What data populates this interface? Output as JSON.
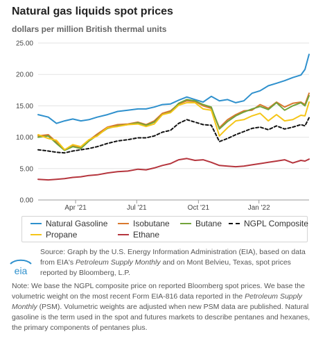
{
  "header": {
    "title": "Natural gas liquids spot prices",
    "subtitle": "dollars per million British thermal units"
  },
  "chart_data": {
    "type": "line",
    "title": "Natural gas liquids spot prices",
    "subtitle": "dollars per million British thermal units",
    "xlabel": "",
    "ylabel": "",
    "ylim": [
      0,
      25
    ],
    "y_ticks": [
      "0.00",
      "5.00",
      "10.00",
      "15.00",
      "20.00",
      "25.00"
    ],
    "x_ticks": [
      "Apr '21",
      "Jul '21",
      "Oct '21",
      "Jan '22"
    ],
    "x_tick_months": [
      2.94,
      5.94,
      8.97,
      11.94
    ],
    "x_range_months": [
      1.1,
      14.4
    ],
    "grid": "horizontal",
    "legend_position": "bottom",
    "series": [
      {
        "name": "Natural Gasoline",
        "color": "#2e90cd",
        "dash": false,
        "x": [
          1.1,
          1.6,
          2.0,
          2.4,
          2.8,
          3.2,
          3.6,
          4.0,
          4.5,
          5.0,
          5.5,
          6.0,
          6.4,
          6.8,
          7.2,
          7.6,
          8.0,
          8.4,
          8.8,
          9.2,
          9.6,
          10.0,
          10.4,
          10.8,
          11.2,
          11.6,
          12.0,
          12.4,
          12.8,
          13.2,
          13.6,
          14.0,
          14.2,
          14.4
        ],
        "values": [
          13.6,
          13.2,
          12.2,
          12.6,
          12.9,
          12.6,
          12.8,
          13.2,
          13.6,
          14.1,
          14.3,
          14.5,
          14.5,
          14.8,
          15.2,
          15.3,
          15.9,
          16.4,
          16.0,
          15.6,
          16.5,
          15.8,
          16.0,
          15.5,
          15.8,
          17.0,
          17.4,
          18.2,
          18.6,
          19.0,
          19.5,
          19.9,
          20.8,
          23.2
        ]
      },
      {
        "name": "Isobutane",
        "color": "#d9782e",
        "dash": false,
        "x": [
          1.1,
          1.6,
          2.0,
          2.4,
          2.8,
          3.2,
          3.6,
          4.0,
          4.5,
          5.0,
          5.5,
          6.0,
          6.4,
          6.8,
          7.2,
          7.6,
          8.0,
          8.4,
          8.8,
          9.2,
          9.6,
          10.0,
          10.4,
          10.8,
          11.2,
          11.6,
          12.0,
          12.4,
          12.8,
          13.2,
          13.6,
          14.0,
          14.2,
          14.4
        ],
        "values": [
          10.2,
          10.4,
          9.2,
          8.0,
          8.6,
          8.3,
          9.5,
          10.5,
          11.6,
          12.0,
          12.1,
          12.4,
          12.0,
          12.6,
          13.8,
          14.2,
          15.3,
          15.8,
          15.7,
          15.0,
          14.6,
          11.5,
          12.8,
          13.6,
          14.2,
          14.3,
          15.2,
          14.6,
          15.6,
          14.8,
          15.4,
          15.6,
          15.2,
          17.0
        ]
      },
      {
        "name": "Butane",
        "color": "#72a33a",
        "dash": false,
        "x": [
          1.1,
          1.6,
          2.0,
          2.4,
          2.8,
          3.2,
          3.6,
          4.0,
          4.5,
          5.0,
          5.5,
          6.0,
          6.4,
          6.8,
          7.2,
          7.6,
          8.0,
          8.4,
          8.8,
          9.2,
          9.6,
          10.0,
          10.4,
          10.8,
          11.2,
          11.6,
          12.0,
          12.4,
          12.8,
          13.2,
          13.6,
          14.0,
          14.2,
          14.4
        ],
        "values": [
          10.0,
          10.2,
          9.0,
          7.9,
          8.5,
          8.2,
          9.4,
          10.3,
          11.4,
          11.8,
          12.0,
          12.3,
          11.9,
          12.4,
          13.6,
          14.0,
          15.4,
          16.0,
          15.8,
          15.2,
          14.8,
          11.3,
          12.5,
          13.4,
          14.0,
          14.5,
          14.9,
          14.4,
          15.5,
          14.3,
          15.0,
          15.5,
          15.0,
          16.6
        ]
      },
      {
        "name": "NGPL Composite",
        "color": "#111111",
        "dash": true,
        "x": [
          1.1,
          1.6,
          2.0,
          2.4,
          2.8,
          3.2,
          3.6,
          4.0,
          4.5,
          5.0,
          5.5,
          6.0,
          6.4,
          6.8,
          7.2,
          7.6,
          8.0,
          8.4,
          8.8,
          9.2,
          9.6,
          10.0,
          10.4,
          10.8,
          11.2,
          11.6,
          12.0,
          12.4,
          12.8,
          13.2,
          13.6,
          14.0,
          14.2,
          14.4
        ],
        "values": [
          8.0,
          7.8,
          7.6,
          7.5,
          7.8,
          8.0,
          8.2,
          8.5,
          9.0,
          9.4,
          9.6,
          9.9,
          9.9,
          10.2,
          10.8,
          11.1,
          12.2,
          12.8,
          12.4,
          12.0,
          11.9,
          9.3,
          9.8,
          10.4,
          10.9,
          11.4,
          11.6,
          11.2,
          11.8,
          11.3,
          11.6,
          12.0,
          11.8,
          13.1
        ]
      },
      {
        "name": "Propane",
        "color": "#f5c518",
        "dash": false,
        "x": [
          1.1,
          1.6,
          2.0,
          2.4,
          2.8,
          3.2,
          3.6,
          4.0,
          4.5,
          5.0,
          5.5,
          6.0,
          6.4,
          6.8,
          7.2,
          7.6,
          8.0,
          8.4,
          8.8,
          9.2,
          9.6,
          10.0,
          10.4,
          10.8,
          11.2,
          11.6,
          12.0,
          12.4,
          12.8,
          13.2,
          13.6,
          14.0,
          14.2,
          14.4
        ],
        "values": [
          10.4,
          9.8,
          9.5,
          8.0,
          8.8,
          8.5,
          9.6,
          10.2,
          11.5,
          11.7,
          12.0,
          12.1,
          11.7,
          12.1,
          13.6,
          13.9,
          15.1,
          15.5,
          15.5,
          14.5,
          14.3,
          10.2,
          11.5,
          12.6,
          12.8,
          13.4,
          13.8,
          12.6,
          13.6,
          12.6,
          12.8,
          13.5,
          13.4,
          15.6
        ]
      },
      {
        "name": "Ethane",
        "color": "#b5353d",
        "dash": false,
        "x": [
          1.1,
          1.6,
          2.0,
          2.4,
          2.8,
          3.2,
          3.6,
          4.0,
          4.5,
          5.0,
          5.5,
          6.0,
          6.4,
          6.8,
          7.2,
          7.6,
          8.0,
          8.4,
          8.8,
          9.2,
          9.6,
          10.0,
          10.4,
          10.8,
          11.2,
          11.6,
          12.0,
          12.4,
          12.8,
          13.2,
          13.6,
          14.0,
          14.2,
          14.4
        ],
        "values": [
          3.3,
          3.2,
          3.3,
          3.4,
          3.6,
          3.7,
          3.9,
          4.0,
          4.3,
          4.5,
          4.6,
          4.9,
          4.8,
          5.1,
          5.5,
          5.8,
          6.4,
          6.6,
          6.3,
          6.4,
          6.0,
          5.5,
          5.4,
          5.3,
          5.4,
          5.6,
          5.8,
          6.0,
          6.2,
          6.4,
          5.9,
          6.3,
          6.2,
          6.5
        ]
      }
    ]
  },
  "legend": {
    "items": [
      {
        "label": "Natural Gasoline",
        "color": "#2e90cd",
        "dash": false
      },
      {
        "label": "Isobutane",
        "color": "#d9782e",
        "dash": false
      },
      {
        "label": "Butane",
        "color": "#72a33a",
        "dash": false
      },
      {
        "label": "NGPL Composite",
        "color": "#111111",
        "dash": true
      },
      {
        "label": "Propane",
        "color": "#f5c518",
        "dash": false
      },
      {
        "label": "Ethane",
        "color": "#b5353d",
        "dash": false
      }
    ]
  },
  "logo": {
    "text": "eia",
    "icon": "eia-logo-icon",
    "color": "#2e90cd"
  },
  "source": {
    "part1": "Source: Graph by the U.S. Energy Information Administration (EIA), based on data from EIA's ",
    "italic1": "Petroleum Supply Monthly",
    "part2": " and on Mont Belvieu, Texas, spot prices reported by Bloomberg, L.P."
  },
  "note": {
    "part1": "Note: We base the NGPL composite price on reported Bloomberg spot prices. We base the volumetric weight on the most recent Form EIA-816 data reported in the ",
    "italic1": "Petroleum Supply Monthly",
    "part2": " (PSM). Volumetric weights are adjusted when new PSM data are published. Natural gasoline is the term used in the spot and futures markets to describe pentanes and hexanes, the primary components of pentanes plus."
  }
}
